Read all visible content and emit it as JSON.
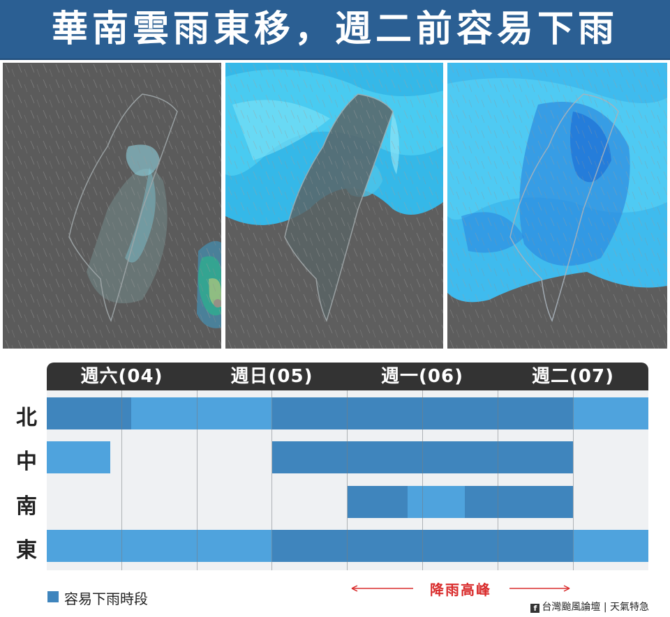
{
  "title": "華南雲雨東移，週二前容易下雨",
  "maps": [
    {
      "name": "radar-map-1"
    },
    {
      "name": "radar-map-2"
    },
    {
      "name": "radar-map-3"
    }
  ],
  "schedule": {
    "days": [
      "週六(04)",
      "週日(05)",
      "週一(06)",
      "週二(07)"
    ],
    "regions": [
      "北",
      "中",
      "南",
      "東"
    ],
    "rain_periods": {
      "北": {
        "light": [
          [
            0.14,
            0.375
          ],
          [
            0.875,
            1.0
          ]
        ],
        "dark": [
          [
            0.0,
            0.14
          ],
          [
            0.375,
            0.875
          ]
        ]
      },
      "中": {
        "light": [
          [
            0.0,
            0.105
          ]
        ],
        "dark": [
          [
            0.375,
            0.875
          ]
        ]
      },
      "南": {
        "light": [
          [
            0.6,
            0.695
          ]
        ],
        "dark": [
          [
            0.5,
            0.6
          ],
          [
            0.695,
            0.875
          ]
        ]
      },
      "東": {
        "light": [
          [
            0.0,
            0.375
          ],
          [
            0.875,
            1.0
          ]
        ],
        "dark": [
          [
            0.375,
            0.875
          ]
        ]
      }
    },
    "colors": {
      "dark": "#3f85bd",
      "light": "#4fa3dd",
      "header": "#333333",
      "peak": "#d92b2b"
    }
  },
  "legend": {
    "label": "容易下雨時段"
  },
  "peak_label": "降雨高峰",
  "credit": {
    "source": "台灣颱風論壇",
    "separator": "|",
    "tag": "天氣特急",
    "icon": "facebook-icon"
  }
}
